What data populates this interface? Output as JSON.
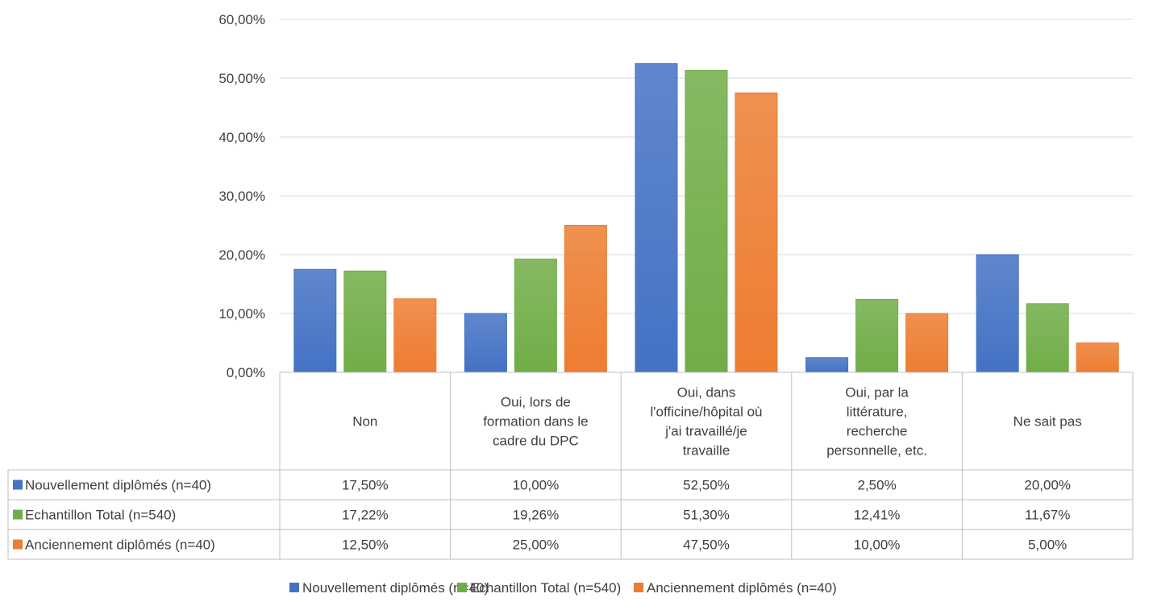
{
  "chart_data": {
    "type": "bar",
    "title": "",
    "xlabel": "",
    "ylabel": "",
    "ylim": [
      0,
      60
    ],
    "yticks": [
      "0,00%",
      "10,00%",
      "20,00%",
      "30,00%",
      "40,00%",
      "50,00%",
      "60,00%"
    ],
    "grid": true,
    "legend_placement": "bottom",
    "categories": [
      [
        "Non"
      ],
      [
        "Oui, lors de",
        "formation dans le",
        "cadre du DPC"
      ],
      [
        "Oui, dans",
        "l'officine/hôpital où",
        "j'ai travaillé/je",
        "travaille"
      ],
      [
        "Oui, par la",
        "littérature,",
        "recherche",
        "personnelle, etc."
      ],
      [
        "Ne sait pas"
      ]
    ],
    "series": [
      {
        "name": "Nouvellement diplômés (n=40)",
        "color": "#4472C4",
        "values": [
          17.5,
          10.0,
          52.5,
          2.5,
          20.0
        ],
        "labels": [
          "17,50%",
          "10,00%",
          "52,50%",
          "2,50%",
          "20,00%"
        ]
      },
      {
        "name": "Echantillon Total (n=540)",
        "color": "#70AD47",
        "values": [
          17.22,
          19.26,
          51.3,
          12.41,
          11.67
        ],
        "labels": [
          "17,22%",
          "19,26%",
          "51,30%",
          "12,41%",
          "11,67%"
        ]
      },
      {
        "name": "Anciennement diplômés (n=40)",
        "color": "#ED7D31",
        "values": [
          12.5,
          25.0,
          47.5,
          10.0,
          5.0
        ],
        "labels": [
          "12,50%",
          "25,00%",
          "47,50%",
          "10,00%",
          "5,00%"
        ]
      }
    ]
  }
}
